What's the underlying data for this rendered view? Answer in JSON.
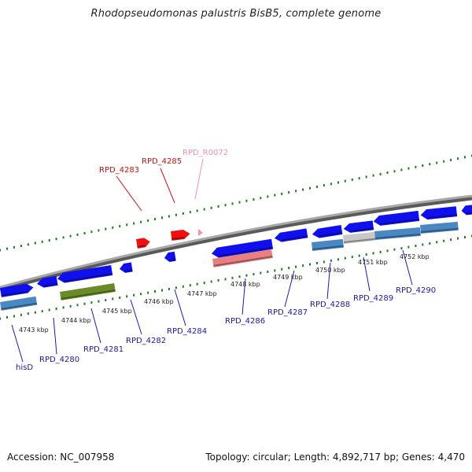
{
  "title": "Rhodopseudomonas palustris BisB5, complete genome",
  "footer": {
    "accession": "Accession: NC_007958",
    "stats": "Topology: circular; Length: 4,892,717 bp; Genes: 4,470"
  },
  "colors": {
    "gene_blue": "#1010ee",
    "gene_steel": "#4a88c4",
    "gene_olive": "#6a8c28",
    "gene_red": "#ee1010",
    "gene_salmon": "#e88080",
    "gene_gray": "#c8c8c8",
    "tick_green": "#1e7a1e",
    "label_blue": "#1a1aaa",
    "label_red": "#cc1111",
    "label_pink": "#f090b8"
  },
  "kbp_ticks": [
    "4743 kbp",
    "4744 kbp",
    "4745 kbp",
    "4746 kbp",
    "4747 kbp",
    "4748 kbp",
    "4749 kbp",
    "4750 kbp",
    "4751 kbp",
    "4752 kbp"
  ],
  "labels": {
    "top": [
      "RPD_4283",
      "RPD_4285",
      "RPD_R0072"
    ],
    "bottom": [
      "hisD",
      "RPD_4280",
      "RPD_4281",
      "RPD_4282",
      "RPD_4284",
      "RPD_4286",
      "RPD_4287",
      "RPD_4288",
      "RPD_4289",
      "RPD_4290"
    ]
  }
}
